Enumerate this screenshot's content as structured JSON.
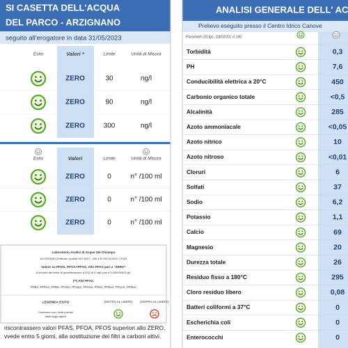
{
  "left": {
    "title_lines": [
      "SI CASETTA DELL'ACQUA",
      "DEL PARCO - ARZIGNANO"
    ],
    "subtitle": "seguito all'erogatore in data 31/05/2023",
    "tables": [
      {
        "headers": [
          "Esito",
          "Valori *",
          "Limite",
          "Unità di Misura"
        ],
        "rows": [
          [
            "ZERO",
            "30",
            "ng/l"
          ],
          [
            "ZERO",
            "90",
            "ng/l"
          ],
          [
            "ZERO",
            "300",
            "ng/l"
          ]
        ]
      },
      {
        "headers": [
          "Esito",
          "Valori",
          "Limite",
          "Unità di Misura"
        ],
        "rows": [
          [
            "ZERO",
            "0",
            "n° /100 ml"
          ],
          [
            "ZERO",
            "0",
            "n° /100 ml"
          ],
          [
            "ZERO",
            "0",
            "n° /100 ml"
          ]
        ]
      }
    ],
    "lab_box": {
      "lines": [
        "Laboratorio Analisi di Acque del Chiampo",
        "ACCREDIA Certificato Qualità ISO 9001 - UNI CEI EN ISO/IEC 17025",
        "Valore su PFOS, PFOA+PFOS, Altri PFAS pari a \"ZERO\"",
        "al di sotto del limite di quantificazione (LOQ) di 5 ng/L pari a 0.000000005 g/L",
        "(**) Altri PFAS:",
        "PFBA, PFPeA, PFBS, PFHxA, PFHpA, PFHxS, PFNA, PFDeA, PFUnA, PFDoA"
      ],
      "legend_title": "LEGENDA ESITO",
      "legend_below": "(SOTTO AL LIMITE)",
      "legend_above": "(SOPRA AL LIMITE)",
      "legend_note": [
        "Conforme con i limiti previsti",
        "dalle leggi vigenti"
      ]
    },
    "footer_lines": [
      "riscontrassero valori PFAS, PFOA, PFOS superiori allo ZERO,",
      "vvede entro 5 giorni, alla sostituzione dei filtri a carboni attivi."
    ]
  },
  "right": {
    "title": "ANALISI GENERALE DELL' ACQU",
    "subtitle": "Prelievo eseguito presso il Centro Idrico Canove",
    "param_header": "Parametri (D.lgs. 23/02/23, n.18)",
    "rows": [
      [
        "Torbidità",
        "0,3"
      ],
      [
        "PH",
        "7,6"
      ],
      [
        "Conducibilità elettrica a 20°C",
        "450"
      ],
      [
        "Carbonio organico totale",
        "<0,5"
      ],
      [
        "Alcalinità",
        "285"
      ],
      [
        "Azoto ammoniacale",
        "<0,05"
      ],
      [
        "Azoto nitrico",
        "10"
      ],
      [
        "Azoto nitroso",
        "<0,01"
      ],
      [
        "Cloruri",
        "6"
      ],
      [
        "Solfati",
        "37"
      ],
      [
        "Sodio",
        "6,2"
      ],
      [
        "Potassio",
        "1,1"
      ],
      [
        "Calcio",
        "69"
      ],
      [
        "Magnesio",
        "20"
      ],
      [
        "Durezza totale",
        "26"
      ],
      [
        "Residuo fisso a 180°C",
        "295"
      ],
      [
        "Cloro residuo libero",
        "0,08"
      ],
      [
        "Batteri coliformi a 37°C",
        "0"
      ],
      [
        "Escherichia coli",
        "0"
      ],
      [
        "Enterococchi",
        "0"
      ]
    ]
  }
}
